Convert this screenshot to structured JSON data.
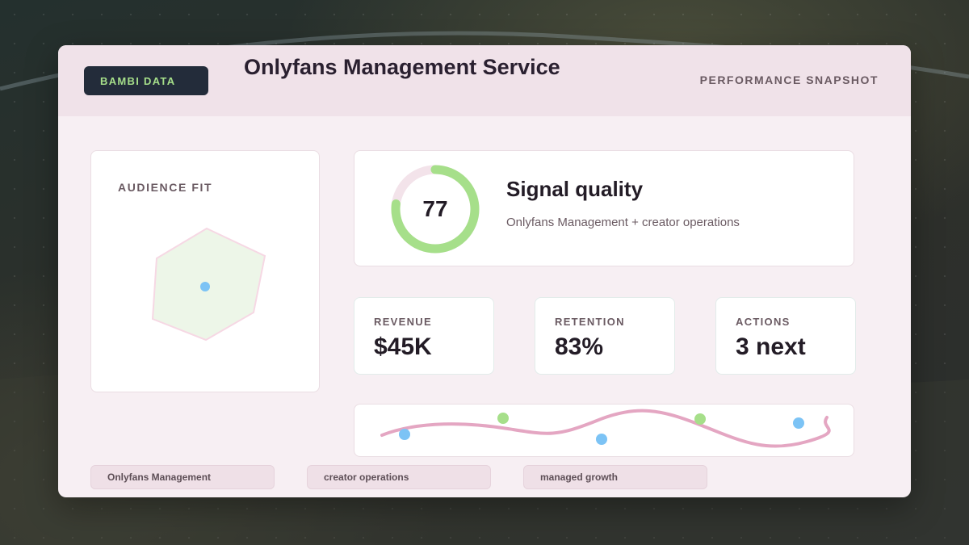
{
  "header": {
    "brand": "BAMBI DATA",
    "title": "Onlyfans Management Service",
    "tag": "PERFORMANCE SNAPSHOT"
  },
  "audience": {
    "label": "AUDIENCE FIT"
  },
  "signal": {
    "score": "77",
    "score_fraction": 0.77,
    "title": "Signal quality",
    "subtitle": "Onlyfans Management + creator operations"
  },
  "stats": [
    {
      "label": "REVENUE",
      "value": "$45K"
    },
    {
      "label": "RETENTION",
      "value": "83%"
    },
    {
      "label": "ACTIONS",
      "value": "3 next"
    }
  ],
  "chips": [
    "Onlyfans Management",
    "creator operations",
    "managed growth"
  ],
  "colors": {
    "accent_green": "#a6df8a",
    "accent_blue": "#7cc3f5",
    "accent_pink": "#e4a6c2",
    "badge_bg": "#232c3a"
  }
}
